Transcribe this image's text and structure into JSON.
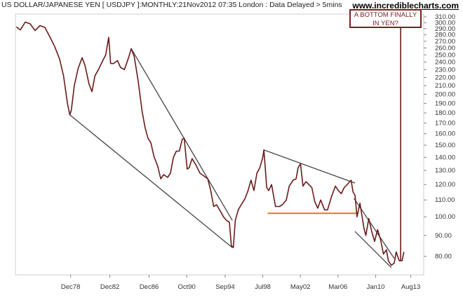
{
  "header": {
    "title": "US DOLLAR/JAPANESE YEN [ USDJPY ]:MONTHLY:21Nov2012 07:35 London : Data Delayed > 5mins",
    "site": "www.incrediblecharts.com"
  },
  "annotation": {
    "line1": "A BOTTOM FINALLY",
    "line2": "IN YEN?"
  },
  "chart_data": {
    "type": "line",
    "scale": "log",
    "ylim": [
      72,
      315
    ],
    "y_ticks": [
      80,
      90,
      100,
      110,
      120,
      130,
      140,
      150,
      160,
      170,
      180,
      190,
      200,
      210,
      220,
      230,
      240,
      250,
      260,
      270,
      280,
      290,
      300,
      310
    ],
    "y_tick_labels": [
      "80.00",
      "90.00",
      "100.00",
      "110.00",
      "120.00",
      "130.00",
      "140.00",
      "150.00",
      "160.00",
      "170.00",
      "180.00",
      "190.00",
      "200.00",
      "210.00",
      "220.00",
      "230.00",
      "240.00",
      "250.00",
      "260.00",
      "270.00",
      "280.00",
      "290.00",
      "300.00",
      "310.00"
    ],
    "x_ticks": [
      {
        "label": "Dec78",
        "x": 1978.92
      },
      {
        "label": "Dec82",
        "x": 1982.92
      },
      {
        "label": "Dec86",
        "x": 1986.92
      },
      {
        "label": "Oct90",
        "x": 1990.75
      },
      {
        "label": "Sep94",
        "x": 1994.67
      },
      {
        "label": "Jul98",
        "x": 1998.5
      },
      {
        "label": "May02",
        "x": 2002.33
      },
      {
        "label": "Mar06",
        "x": 2006.17
      },
      {
        "label": "Jan10",
        "x": 2010.0
      },
      {
        "label": "Aug13",
        "x": 2013.58
      }
    ],
    "xlim": [
      1973.3,
      2014.9
    ],
    "grid": false,
    "series": [
      {
        "color": "#6b1a1a",
        "points": [
          [
            1973.4,
            293
          ],
          [
            1973.8,
            288
          ],
          [
            1974.3,
            301
          ],
          [
            1974.8,
            298
          ],
          [
            1975.3,
            287
          ],
          [
            1975.8,
            295
          ],
          [
            1976.3,
            292
          ],
          [
            1976.8,
            277
          ],
          [
            1977.3,
            262
          ],
          [
            1977.8,
            244
          ],
          [
            1978.2,
            222
          ],
          [
            1978.6,
            190
          ],
          [
            1978.85,
            178
          ],
          [
            1979.0,
            183
          ],
          [
            1979.3,
            210
          ],
          [
            1979.7,
            232
          ],
          [
            1980.1,
            246
          ],
          [
            1980.4,
            235
          ],
          [
            1980.8,
            212
          ],
          [
            1981.1,
            203
          ],
          [
            1981.4,
            222
          ],
          [
            1981.8,
            231
          ],
          [
            1982.2,
            242
          ],
          [
            1982.5,
            250
          ],
          [
            1982.8,
            276
          ],
          [
            1983.0,
            238
          ],
          [
            1983.3,
            238
          ],
          [
            1983.7,
            242
          ],
          [
            1984.0,
            233
          ],
          [
            1984.4,
            230
          ],
          [
            1984.8,
            245
          ],
          [
            1985.1,
            259
          ],
          [
            1985.4,
            248
          ],
          [
            1985.8,
            216
          ],
          [
            1986.2,
            182
          ],
          [
            1986.5,
            166
          ],
          [
            1986.8,
            156
          ],
          [
            1987.1,
            152
          ],
          [
            1987.4,
            141
          ],
          [
            1987.8,
            133
          ],
          [
            1988.1,
            124
          ],
          [
            1988.4,
            127
          ],
          [
            1988.8,
            125
          ],
          [
            1989.1,
            128
          ],
          [
            1989.4,
            140
          ],
          [
            1989.7,
            145
          ],
          [
            1990.0,
            145
          ],
          [
            1990.3,
            155
          ],
          [
            1990.5,
            156
          ],
          [
            1990.8,
            131
          ],
          [
            1991.0,
            132
          ],
          [
            1991.3,
            139
          ],
          [
            1991.7,
            134
          ],
          [
            1992.1,
            128
          ],
          [
            1992.5,
            126
          ],
          [
            1992.9,
            124
          ],
          [
            1993.2,
            116
          ],
          [
            1993.5,
            106
          ],
          [
            1993.8,
            107
          ],
          [
            1994.1,
            104
          ],
          [
            1994.5,
            100
          ],
          [
            1994.8,
            98
          ],
          [
            1995.1,
            97
          ],
          [
            1995.3,
            85
          ],
          [
            1995.5,
            84
          ],
          [
            1995.7,
            98
          ],
          [
            1996.0,
            104
          ],
          [
            1996.3,
            107
          ],
          [
            1996.7,
            111
          ],
          [
            1997.0,
            116
          ],
          [
            1997.3,
            123
          ],
          [
            1997.6,
            116
          ],
          [
            1997.9,
            128
          ],
          [
            1998.2,
            132
          ],
          [
            1998.5,
            140
          ],
          [
            1998.62,
            146
          ],
          [
            1998.9,
            118
          ],
          [
            1999.1,
            116
          ],
          [
            1999.4,
            120
          ],
          [
            1999.8,
            106
          ],
          [
            2000.2,
            106
          ],
          [
            2000.5,
            107
          ],
          [
            2000.9,
            110
          ],
          [
            2001.2,
            119
          ],
          [
            2001.6,
            123
          ],
          [
            2001.9,
            124
          ],
          [
            2002.1,
            132
          ],
          [
            2002.35,
            135
          ],
          [
            2002.6,
            119
          ],
          [
            2002.9,
            122
          ],
          [
            2003.2,
            120
          ],
          [
            2003.5,
            118
          ],
          [
            2003.8,
            109
          ],
          [
            2004.1,
            105
          ],
          [
            2004.4,
            110
          ],
          [
            2004.8,
            104
          ],
          [
            2005.1,
            104
          ],
          [
            2005.5,
            112
          ],
          [
            2005.9,
            119
          ],
          [
            2006.2,
            116
          ],
          [
            2006.5,
            114
          ],
          [
            2006.8,
            118
          ],
          [
            2007.1,
            120
          ],
          [
            2007.5,
            123
          ],
          [
            2007.7,
            115
          ],
          [
            2007.9,
            113
          ],
          [
            2008.1,
            100
          ],
          [
            2008.4,
            108
          ],
          [
            2008.8,
            94
          ],
          [
            2009.0,
            90
          ],
          [
            2009.3,
            99
          ],
          [
            2009.6,
            92
          ],
          [
            2009.9,
            87
          ],
          [
            2010.2,
            93
          ],
          [
            2010.5,
            88
          ],
          [
            2010.8,
            81
          ],
          [
            2011.1,
            83
          ],
          [
            2011.3,
            78
          ],
          [
            2011.6,
            76
          ],
          [
            2011.9,
            77
          ],
          [
            2012.1,
            82
          ],
          [
            2012.4,
            78
          ],
          [
            2012.7,
            78
          ],
          [
            2012.88,
            82
          ]
        ]
      }
    ],
    "trendlines": [
      {
        "color": "#444444",
        "from": [
          1978.85,
          178
        ],
        "to": [
          1995.4,
          84
        ]
      },
      {
        "color": "#444444",
        "from": [
          1985.1,
          259
        ],
        "to": [
          1995.4,
          98
        ]
      },
      {
        "color": "#444444",
        "from": [
          1998.62,
          146
        ],
        "to": [
          2007.9,
          121
        ]
      },
      {
        "color": "#444444",
        "from": [
          2007.8,
          111
        ],
        "to": [
          2011.9,
          79
        ]
      },
      {
        "color": "#444444",
        "from": [
          2007.9,
          92
        ],
        "to": [
          2011.6,
          75
        ]
      },
      {
        "color": "#e07b10",
        "from": [
          1999.0,
          102
        ],
        "to": [
          2008.0,
          102
        ]
      }
    ],
    "arrow_line": {
      "color": "#6b1a1a",
      "x": 2012.55,
      "from_value": 78
    }
  }
}
